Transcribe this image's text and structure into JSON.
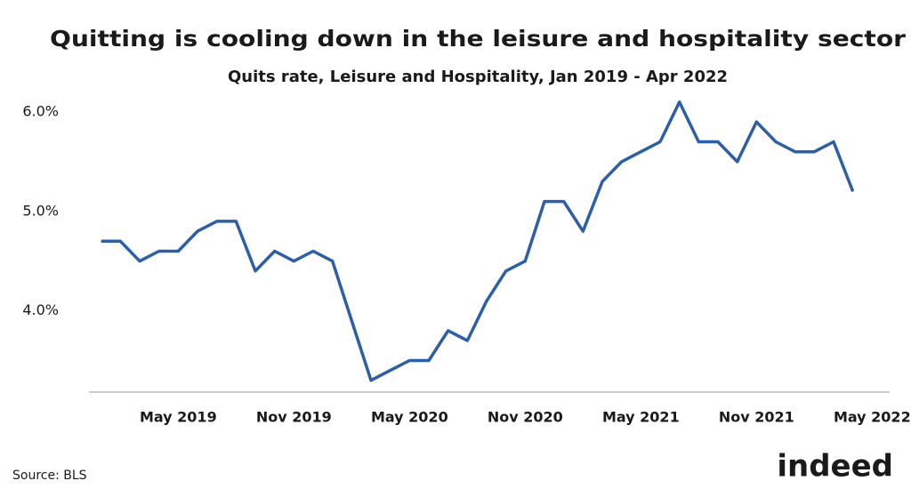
{
  "chart_data": {
    "type": "line",
    "title": "Quitting is cooling down in the leisure and hospitality sector",
    "subtitle": "Quits rate, Leisure and Hospitality, Jan 2019 - Apr 2022",
    "x": [
      "2019-01",
      "2019-02",
      "2019-03",
      "2019-04",
      "2019-05",
      "2019-06",
      "2019-07",
      "2019-08",
      "2019-09",
      "2019-10",
      "2019-11",
      "2019-12",
      "2020-01",
      "2020-02",
      "2020-03",
      "2020-04",
      "2020-05",
      "2020-06",
      "2020-07",
      "2020-08",
      "2020-09",
      "2020-10",
      "2020-11",
      "2020-12",
      "2021-01",
      "2021-02",
      "2021-03",
      "2021-04",
      "2021-05",
      "2021-06",
      "2021-07",
      "2021-08",
      "2021-09",
      "2021-10",
      "2021-11",
      "2021-12",
      "2022-01",
      "2022-02",
      "2022-03",
      "2022-04"
    ],
    "values": [
      4.7,
      4.7,
      4.5,
      4.6,
      4.6,
      4.8,
      4.9,
      4.9,
      4.4,
      4.6,
      4.5,
      4.6,
      4.5,
      3.9,
      3.3,
      3.4,
      3.5,
      3.5,
      3.8,
      3.7,
      4.1,
      4.4,
      4.5,
      5.1,
      5.1,
      4.8,
      5.3,
      5.5,
      5.6,
      5.7,
      6.1,
      5.7,
      5.7,
      5.5,
      5.9,
      5.7,
      5.6,
      5.6,
      5.7,
      5.2
    ],
    "color": "#2d5ea8",
    "xlim": [
      "2018-12",
      "2022-06"
    ],
    "xticks": [
      {
        "value": "2019-05",
        "label": "May 2019"
      },
      {
        "value": "2019-11",
        "label": "Nov 2019"
      },
      {
        "value": "2020-05",
        "label": "May 2020"
      },
      {
        "value": "2020-11",
        "label": "Nov 2020"
      },
      {
        "value": "2021-05",
        "label": "May 2021"
      },
      {
        "value": "2021-11",
        "label": "Nov 2021"
      },
      {
        "value": "2022-05",
        "label": "May 2022"
      }
    ],
    "ylim": [
      3.2,
      6.25
    ],
    "yticks": [
      {
        "value": 4,
        "label": "4.0%"
      },
      {
        "value": 5,
        "label": "5.0%"
      },
      {
        "value": 6,
        "label": "6.0%"
      }
    ],
    "grid": false,
    "source": "Source: BLS",
    "logo": "indeed"
  }
}
